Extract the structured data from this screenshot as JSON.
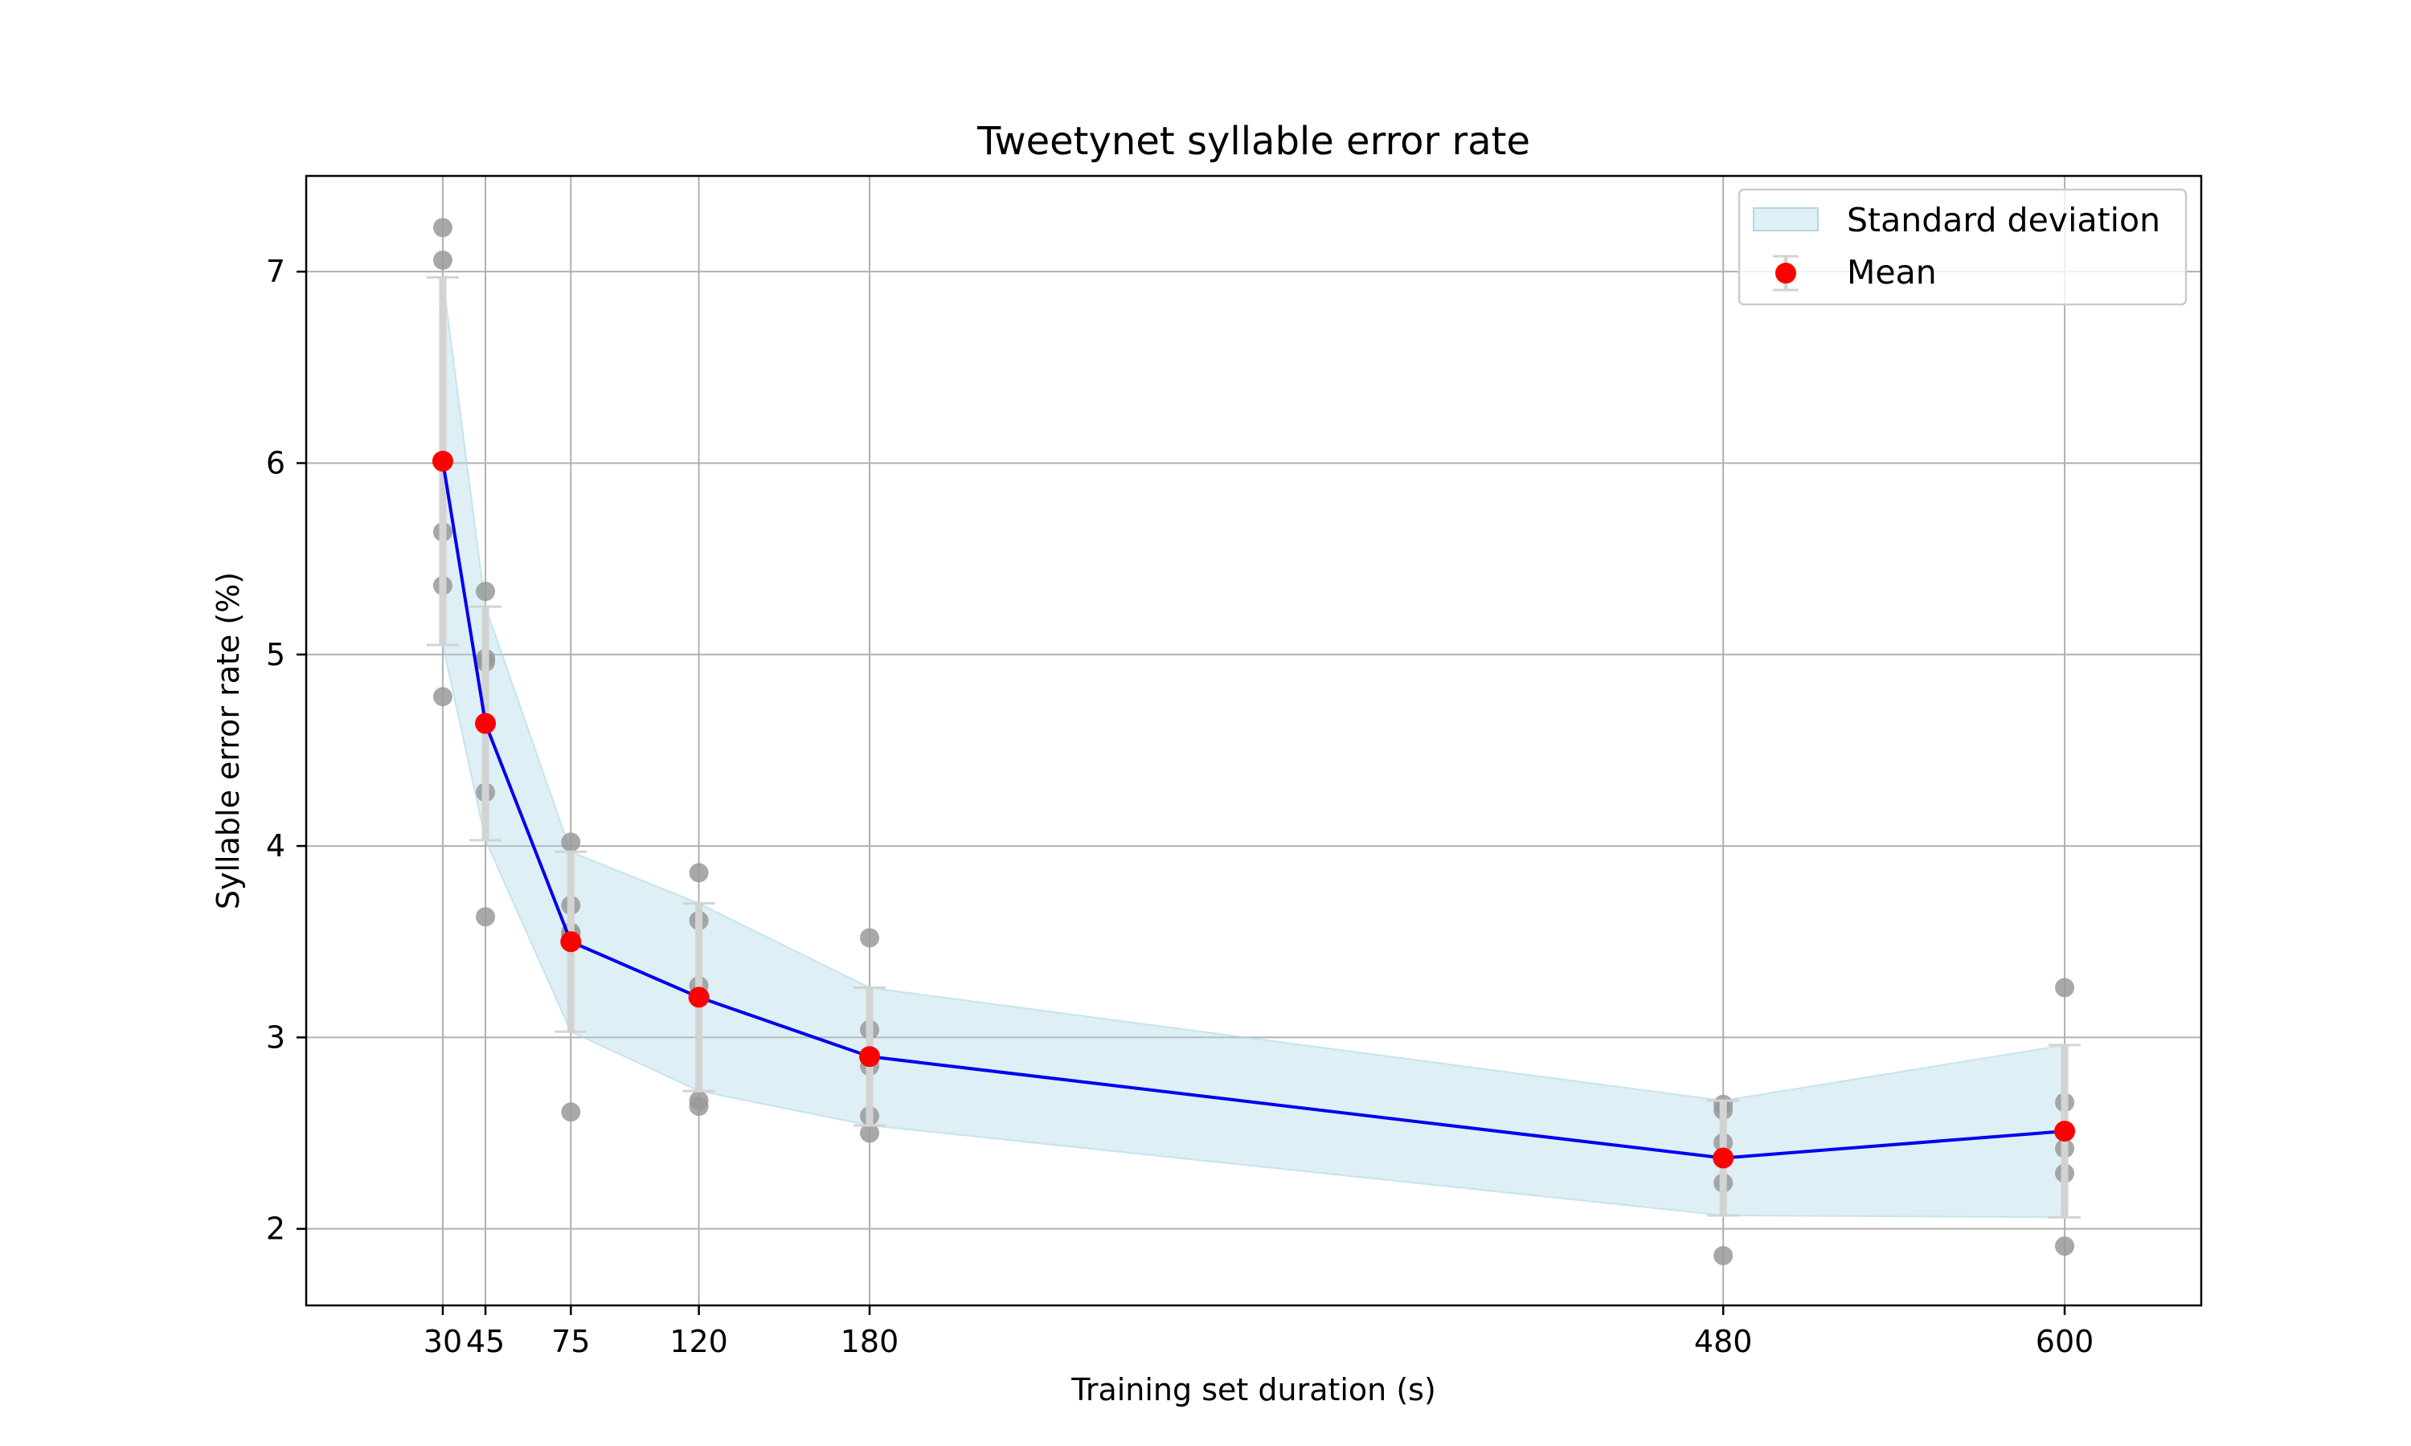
{
  "chart_data": {
    "type": "line",
    "title": "Tweetynet syllable error rate",
    "xlabel": "Training set duration (s)",
    "ylabel": "Syllable error rate (%)",
    "xlim": [
      -18,
      648
    ],
    "ylim": [
      1.6,
      7.5
    ],
    "x_ticks": [
      30,
      45,
      75,
      120,
      180,
      480,
      600
    ],
    "x_tick_labels": [
      "30",
      "45",
      "75",
      "120",
      "180",
      "480",
      "600"
    ],
    "y_ticks": [
      2,
      3,
      4,
      5,
      6,
      7
    ],
    "y_tick_labels": [
      "2",
      "3",
      "4",
      "5",
      "6",
      "7"
    ],
    "grid": true,
    "legend_position": "top-right",
    "legend": {
      "std_label": "Standard deviation",
      "mean_label": "Mean"
    },
    "colors": {
      "mean_line": "#0000ee",
      "mean_marker": "#ff0000",
      "std_band": "#add8e6",
      "error_bar": "#d3d3d3",
      "replicate_point": "#999999",
      "grid": "#b0b0b0"
    },
    "mean": {
      "x": [
        30,
        45,
        75,
        120,
        180,
        480,
        600
      ],
      "y": [
        6.01,
        4.64,
        3.5,
        3.21,
        2.9,
        2.37,
        2.51
      ]
    },
    "std_band": {
      "x": [
        30,
        45,
        75,
        120,
        180,
        480,
        600
      ],
      "lower": [
        5.05,
        4.03,
        3.03,
        2.72,
        2.54,
        2.07,
        2.06
      ],
      "upper": [
        6.97,
        5.25,
        3.97,
        3.7,
        3.26,
        2.67,
        2.96
      ]
    },
    "replicates": [
      {
        "x": 30,
        "values": [
          7.23,
          7.06,
          5.64,
          5.36,
          4.78
        ]
      },
      {
        "x": 45,
        "values": [
          5.33,
          4.98,
          4.96,
          4.28,
          3.63
        ]
      },
      {
        "x": 75,
        "values": [
          4.02,
          3.69,
          3.55,
          3.54,
          2.61
        ]
      },
      {
        "x": 120,
        "values": [
          3.86,
          3.61,
          3.27,
          2.67,
          2.64
        ]
      },
      {
        "x": 180,
        "values": [
          3.52,
          3.04,
          2.85,
          2.59,
          2.5
        ]
      },
      {
        "x": 480,
        "values": [
          2.65,
          2.62,
          2.45,
          2.24,
          1.86
        ]
      },
      {
        "x": 600,
        "values": [
          3.26,
          2.66,
          2.42,
          2.29,
          1.91
        ]
      }
    ]
  }
}
